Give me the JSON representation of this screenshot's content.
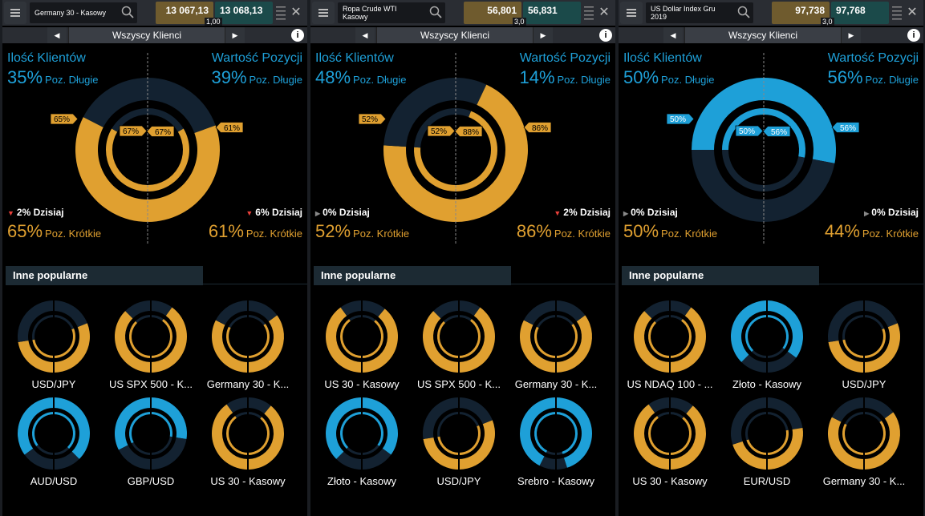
{
  "colors": {
    "gold": "#e0a030",
    "gold_dark": "#b87a10",
    "blue": "#1ea0d8",
    "navy": "#132231",
    "sell_bg": "#6f5b2e",
    "buy_bg": "#1b4a4a",
    "down": "#e8403a"
  },
  "panels": [
    {
      "instrument": "Germany 30 - Kasowy",
      "sell": "13 067,13",
      "buy": "13 068,13",
      "spread": "1,00",
      "filter": "Wszyscy Klienci",
      "left_title": "Ilość Klientów",
      "right_title": "Wartość Pozycji",
      "long_label": "Poz. Długie",
      "short_label": "Poz. Krótkie",
      "clients_long": "35%",
      "clients_short": "65%",
      "value_long": "39%",
      "value_short": "61%",
      "clients_today": "2% Dzisiaj",
      "clients_today_dir": "down",
      "value_today": "6% Dzisiaj",
      "value_today_dir": "down",
      "outer_left_short": 0.65,
      "outer_right_short": 0.61,
      "inner_left_short": 0.67,
      "inner_right_short": 0.67,
      "tags": {
        "outer_left": "65%",
        "outer_right": "61%",
        "inner_left": "67%",
        "inner_right": "67%"
      },
      "dominant": "gold",
      "popular_title": "Inne popularne",
      "popular": [
        {
          "name": "USD/JPY",
          "left": 0.45,
          "right": 0.62
        },
        {
          "name": "US SPX 500 - K...",
          "left": 0.75,
          "right": 0.8
        },
        {
          "name": "Germany 30 - K...",
          "left": 0.65,
          "right": 0.7
        },
        {
          "name": "AUD/USD",
          "left": 0.3,
          "right": 0.25
        },
        {
          "name": "GBP/USD",
          "left": 0.35,
          "right": 0.45
        },
        {
          "name": "US 30 - Kasowy",
          "left": 0.8,
          "right": 0.78
        }
      ]
    },
    {
      "instrument": "Ropa Crude WTI Kasowy",
      "sell": "56,801",
      "buy": "56,831",
      "spread": "3,0",
      "filter": "Wszyscy Klienci",
      "left_title": "Ilość Klientów",
      "right_title": "Wartość Pozycji",
      "long_label": "Poz. Długie",
      "short_label": "Poz. Krótkie",
      "clients_long": "48%",
      "clients_short": "52%",
      "value_long": "14%",
      "value_short": "86%",
      "clients_today": "0% Dzisiaj",
      "clients_today_dir": "flat",
      "value_today": "2% Dzisiaj",
      "value_today_dir": "down",
      "outer_left_short": 0.52,
      "outer_right_short": 0.86,
      "inner_left_short": 0.52,
      "inner_right_short": 0.88,
      "tags": {
        "outer_left": "52%",
        "outer_right": "86%",
        "inner_left": "52%",
        "inner_right": "88%"
      },
      "dominant": "gold",
      "popular_title": "Inne popularne",
      "popular": [
        {
          "name": "US 30 - Kasowy",
          "left": 0.8,
          "right": 0.78
        },
        {
          "name": "US SPX 500 - K...",
          "left": 0.75,
          "right": 0.8
        },
        {
          "name": "Germany 30 - K...",
          "left": 0.65,
          "right": 0.7
        },
        {
          "name": "Złoto - Kasowy",
          "left": 0.25,
          "right": 0.3
        },
        {
          "name": "USD/JPY",
          "left": 0.45,
          "right": 0.62
        },
        {
          "name": "Srebro - Kasowy",
          "left": 0.15,
          "right": 0.1
        }
      ]
    },
    {
      "instrument": "US Dollar Index Gru 2019",
      "sell": "97,738",
      "buy": "97,768",
      "spread": "3,0",
      "filter": "Wszyscy Klienci",
      "left_title": "Ilość Klientów",
      "right_title": "Wartość Pozycji",
      "long_label": "Poz. Długie",
      "short_label": "Poz. Krótkie",
      "clients_long": "50%",
      "clients_short": "50%",
      "value_long": "56%",
      "value_short": "44%",
      "clients_today": "0% Dzisiaj",
      "clients_today_dir": "flat",
      "value_today": "0% Dzisiaj",
      "value_today_dir": "flat",
      "outer_left_short": 0.5,
      "outer_right_short": 0.44,
      "inner_left_short": 0.5,
      "inner_right_short": 0.44,
      "tags": {
        "outer_left": "50%",
        "outer_right": "56%",
        "inner_left": "50%",
        "inner_right": "56%"
      },
      "dominant": "blue",
      "popular_title": "Inne popularne",
      "popular": [
        {
          "name": "US NDAQ 100 - ...",
          "left": 0.75,
          "right": 0.8
        },
        {
          "name": "Złoto - Kasowy",
          "left": 0.25,
          "right": 0.3
        },
        {
          "name": "USD/JPY",
          "left": 0.45,
          "right": 0.62
        },
        {
          "name": "US 30 - Kasowy",
          "left": 0.8,
          "right": 0.78
        },
        {
          "name": "EUR/USD",
          "left": 0.4,
          "right": 0.55
        },
        {
          "name": "Germany 30 - K...",
          "left": 0.65,
          "right": 0.7
        }
      ]
    }
  ]
}
